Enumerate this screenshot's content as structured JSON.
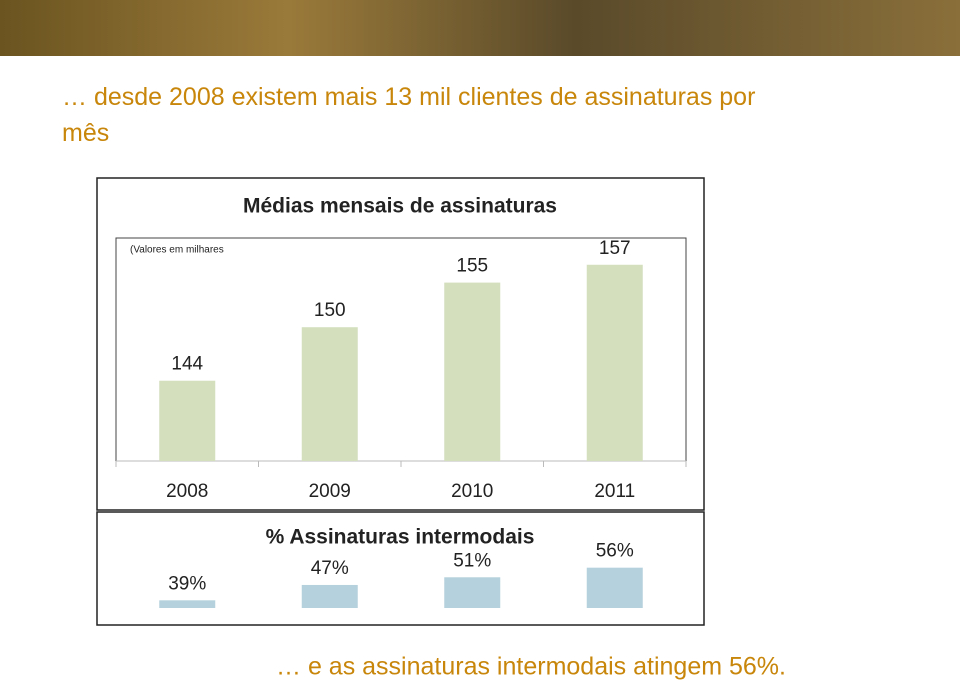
{
  "heading": "… desde 2008 existem mais 13 mil clientes de assinaturas por mês",
  "footer": "… e as assinaturas intermodais atingem 56%.",
  "chart_data": [
    {
      "type": "bar",
      "title": "Médias mensais de assinaturas",
      "note": "(Valores em milhares",
      "categories": [
        "2008",
        "2009",
        "2010",
        "2011"
      ],
      "values": [
        144,
        150,
        155,
        157
      ],
      "color": "#d3dfbd",
      "ylim": [
        135,
        160
      ]
    },
    {
      "type": "bar",
      "title": "% Assinaturas intermodais",
      "values": [
        39,
        47,
        51,
        56
      ],
      "value_labels": [
        "39%",
        "47%",
        "51%",
        "56%"
      ],
      "color": "#b5d1dd",
      "ylim": [
        35,
        60
      ]
    }
  ]
}
